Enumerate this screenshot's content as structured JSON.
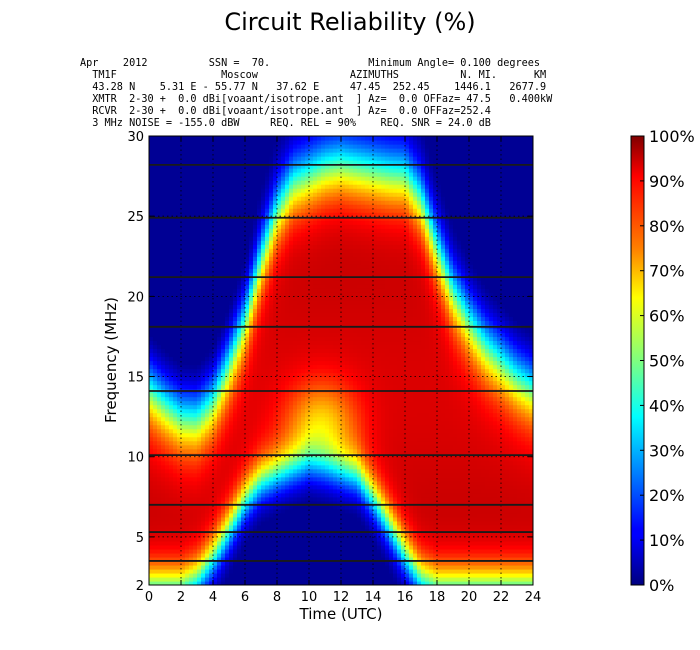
{
  "title": "Circuit Reliability (%)",
  "header_lines": [
    "Apr    2012          SSN =  70.                Minimum Angle= 0.100 degrees",
    "  TM1F                 Moscow               AZIMUTHS          N. MI.      KM",
    "  43.28 N    5.31 E - 55.77 N   37.62 E     47.45  252.45    1446.1   2677.9",
    "  XMTR  2-30 +  0.0 dBi[voaant/isotrope.ant  ] Az=  0.0 OFFaz= 47.5   0.400kW",
    "  RCVR  2-30 +  0.0 dBi[voaant/isotrope.ant  ] Az=  0.0 OFFaz=252.4",
    "  3 MHz NOISE = -155.0 dBW     REQ. REL = 90%    REQ. SNR = 24.0 dB"
  ],
  "chart_data": {
    "type": "heatmap",
    "title": "Circuit Reliability (%)",
    "xlabel": "Time (UTC)",
    "ylabel": "Frequency (MHz)",
    "xlim": [
      0,
      24
    ],
    "ylim": [
      2,
      30
    ],
    "x_ticks": [
      "0",
      "2",
      "4",
      "6",
      "8",
      "10",
      "12",
      "14",
      "16",
      "18",
      "20",
      "22",
      "24"
    ],
    "y_ticks": [
      "2",
      "5",
      "10",
      "15",
      "20",
      "25",
      "30"
    ],
    "grid": true,
    "colorbar": {
      "range": [
        0,
        100
      ],
      "ticks": [
        "0%",
        "10%",
        "20%",
        "30%",
        "40%",
        "50%",
        "60%",
        "70%",
        "80%",
        "90%",
        "100%"
      ]
    },
    "horizontal_lines_mhz": [
      3.5,
      5.3,
      7.0,
      10.1,
      14.1,
      18.1,
      21.2,
      24.9,
      28.2
    ],
    "x_hours": [
      0,
      1,
      2,
      3,
      4,
      5,
      6,
      7,
      8,
      9,
      10,
      11,
      12,
      13,
      14,
      15,
      16,
      17,
      18,
      19,
      20,
      21,
      22,
      23,
      24
    ],
    "muf_mhz": [
      14.3,
      13.3,
      12.5,
      12.4,
      13.5,
      15.8,
      18.5,
      22.3,
      25.3,
      27.0,
      27.5,
      28.0,
      28.2,
      28.0,
      27.8,
      27.6,
      27.5,
      26.0,
      23.0,
      20.3,
      18.5,
      17.0,
      16.0,
      15.0,
      14.3
    ],
    "luf_mhz": [
      2,
      2,
      2,
      2.5,
      3.8,
      5.5,
      7.3,
      8.5,
      9.0,
      9.4,
      9.7,
      9.5,
      9.2,
      8.9,
      7.5,
      5.8,
      4.0,
      2.5,
      2,
      2,
      2,
      2,
      2,
      2,
      2
    ]
  }
}
